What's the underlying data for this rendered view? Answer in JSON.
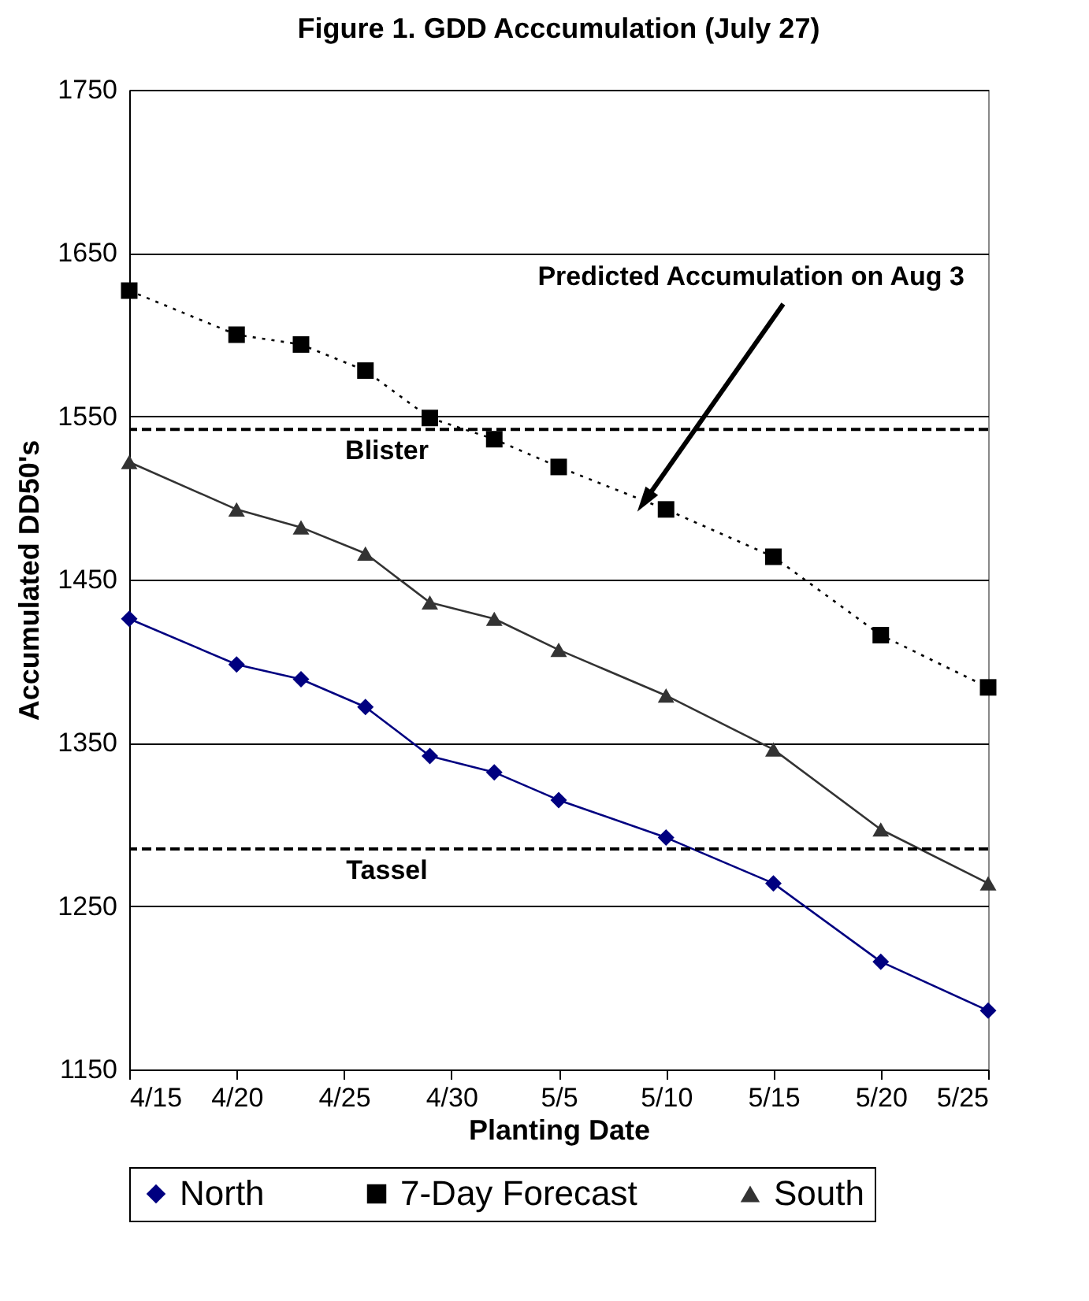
{
  "chart_data": {
    "type": "line",
    "title": "Figure 1.  GDD Acccumulation (July 27)",
    "xlabel": "Planting Date",
    "ylabel": "Accumulated DD50's",
    "x": [
      "--04-15",
      "--04-20",
      "--04-23",
      "--04-26",
      "--04-29",
      "--05-02",
      "--05-05",
      "--05-10",
      "--05-15",
      "--05-20",
      "--05-25"
    ],
    "series": [
      {
        "name": "North",
        "color": "#000080",
        "marker": "diamond",
        "line_style": "solid",
        "values": [
          1426,
          1398,
          1389,
          1372,
          1342,
          1332,
          1315,
          1292,
          1264,
          1216,
          1186
        ]
      },
      {
        "name": "7-Day Forecast",
        "color": "#000000",
        "marker": "square",
        "line_style": "dotted",
        "values": [
          1627,
          1600,
          1594,
          1578,
          1549,
          1536,
          1519,
          1493,
          1464,
          1416,
          1384
        ]
      },
      {
        "name": "South",
        "color": "#333333",
        "marker": "triangle",
        "line_style": "solid",
        "values": [
          1522,
          1493,
          1482,
          1466,
          1436,
          1426,
          1407,
          1379,
          1346,
          1297,
          1264
        ]
      }
    ],
    "xlim": [
      "--04-15",
      "--05-25"
    ],
    "xticks": [
      {
        "value": "--04-15",
        "label": "4/15"
      },
      {
        "value": "--04-20",
        "label": "4/20"
      },
      {
        "value": "--04-25",
        "label": "4/25"
      },
      {
        "value": "--04-30",
        "label": "4/30"
      },
      {
        "value": "--05-05",
        "label": "5/5"
      },
      {
        "value": "--05-10",
        "label": "5/10"
      },
      {
        "value": "--05-15",
        "label": "5/15"
      },
      {
        "value": "--05-20",
        "label": "5/20"
      },
      {
        "value": "--05-25",
        "label": "5/25"
      }
    ],
    "ylim": [
      1150,
      1750
    ],
    "yticks": [
      1150,
      1250,
      1350,
      1450,
      1550,
      1650,
      1750
    ],
    "grid": "y",
    "legend": "bottom",
    "ref_lines": [
      {
        "axis": "y",
        "value": 1542,
        "label": "Blister",
        "color": "#000000",
        "line_style": "dashed"
      },
      {
        "axis": "y",
        "value": 1285,
        "label": "Tassel",
        "color": "#000000",
        "line_style": "dashed"
      }
    ],
    "annotations": [
      {
        "text": "Predicted Accumulation on Aug 3",
        "x": "--05-09",
        "y": 1498
      }
    ]
  }
}
